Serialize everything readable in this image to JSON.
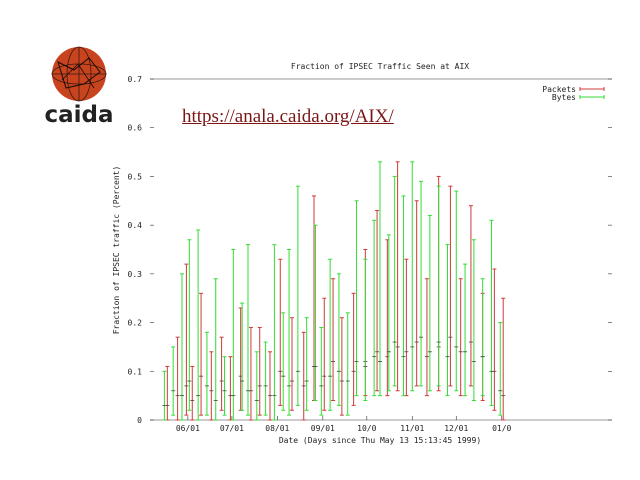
{
  "logo": {
    "text": "caida",
    "icon": "globe-icon"
  },
  "link": {
    "url": "https://anala.caida.org/AIX/"
  },
  "chart_data": {
    "type": "line",
    "title": "Fraction of IPSEC Traffic Seen at AIX",
    "xlabel": "Date (Days since Thu May 13 15:13:45 1999)",
    "ylabel": "Fraction of IPSEC traffic (Percent)",
    "ylim": [
      0,
      0.7
    ],
    "xlim": [
      0,
      300
    ],
    "yticks": [
      0,
      0.1,
      0.2,
      0.3,
      0.4,
      0.5,
      0.6,
      0.7
    ],
    "ytick_labels": [
      "0",
      "0.1",
      "0.2",
      "0.3",
      "0.4",
      "0.5",
      "0.6",
      "0.7"
    ],
    "xticks": [
      {
        "label": "06/01",
        "x": 19
      },
      {
        "label": "07/01",
        "x": 49
      },
      {
        "label": "08/01",
        "x": 80
      },
      {
        "label": "09/01",
        "x": 111
      },
      {
        "label": "10/0",
        "x": 141
      },
      {
        "label": "11/01",
        "x": 172
      },
      {
        "label": "12/01",
        "x": 202
      },
      {
        "label": "01/0",
        "x": 233
      }
    ],
    "grid": false,
    "legend_position": "top-right",
    "series": [
      {
        "name": "Packets",
        "color": "#d03a3a",
        "x": [
          5,
          12,
          18,
          22,
          28,
          35,
          42,
          48,
          55,
          62,
          68,
          75,
          82,
          90,
          98,
          105,
          112,
          118,
          124,
          132,
          140,
          148,
          155,
          162,
          168,
          175,
          182,
          190,
          198,
          205,
          212,
          220,
          228,
          234
        ],
        "value": [
          0.03,
          0.05,
          0.07,
          0.04,
          0.09,
          0.06,
          0.08,
          0.05,
          0.09,
          0.06,
          0.07,
          0.05,
          0.1,
          0.08,
          0.07,
          0.11,
          0.09,
          0.12,
          0.08,
          0.1,
          0.12,
          0.14,
          0.13,
          0.15,
          0.14,
          0.16,
          0.13,
          0.15,
          0.17,
          0.14,
          0.16,
          0.13,
          0.1,
          0.05
        ],
        "high": [
          0.11,
          0.17,
          0.32,
          0.11,
          0.26,
          0.14,
          0.17,
          0.13,
          0.23,
          0.19,
          0.19,
          0.14,
          0.33,
          0.21,
          0.18,
          0.46,
          0.25,
          0.29,
          0.21,
          0.26,
          0.35,
          0.43,
          0.37,
          0.53,
          0.33,
          0.45,
          0.29,
          0.5,
          0.48,
          0.29,
          0.44,
          0.26,
          0.31,
          0.25
        ],
        "low": [
          0.0,
          0.0,
          0.01,
          0.0,
          0.01,
          0.0,
          0.02,
          0.0,
          0.02,
          0.0,
          0.01,
          0.0,
          0.03,
          0.02,
          0.0,
          0.04,
          0.02,
          0.04,
          0.01,
          0.03,
          0.05,
          0.06,
          0.05,
          0.06,
          0.05,
          0.07,
          0.05,
          0.06,
          0.07,
          0.05,
          0.07,
          0.04,
          0.02,
          0.0
        ]
      },
      {
        "name": "Bytes",
        "color": "#33dd33",
        "x": [
          3,
          9,
          15,
          20,
          26,
          32,
          38,
          44,
          50,
          56,
          60,
          66,
          72,
          78,
          84,
          88,
          94,
          100,
          106,
          110,
          116,
          122,
          128,
          134,
          140,
          146,
          150,
          156,
          160,
          166,
          172,
          178,
          184,
          190,
          196,
          202,
          208,
          214,
          220,
          226,
          232
        ],
        "value": [
          0.03,
          0.06,
          0.05,
          0.08,
          0.05,
          0.07,
          0.04,
          0.06,
          0.05,
          0.08,
          0.06,
          0.04,
          0.07,
          0.05,
          0.09,
          0.07,
          0.1,
          0.08,
          0.11,
          0.07,
          0.09,
          0.1,
          0.08,
          0.12,
          0.11,
          0.13,
          0.12,
          0.14,
          0.16,
          0.13,
          0.15,
          0.17,
          0.14,
          0.16,
          0.13,
          0.15,
          0.14,
          0.12,
          0.13,
          0.1,
          0.06
        ],
        "high": [
          0.1,
          0.15,
          0.3,
          0.37,
          0.39,
          0.18,
          0.29,
          0.13,
          0.35,
          0.24,
          0.36,
          0.14,
          0.16,
          0.36,
          0.22,
          0.35,
          0.48,
          0.21,
          0.4,
          0.19,
          0.33,
          0.3,
          0.22,
          0.45,
          0.33,
          0.41,
          0.53,
          0.38,
          0.5,
          0.46,
          0.53,
          0.49,
          0.42,
          0.48,
          0.36,
          0.47,
          0.32,
          0.37,
          0.29,
          0.41,
          0.2
        ],
        "low": [
          0.0,
          0.01,
          0.0,
          0.02,
          0.0,
          0.01,
          0.0,
          0.01,
          0.0,
          0.02,
          0.01,
          0.0,
          0.01,
          0.0,
          0.02,
          0.01,
          0.03,
          0.02,
          0.04,
          0.01,
          0.02,
          0.03,
          0.01,
          0.05,
          0.04,
          0.05,
          0.05,
          0.06,
          0.07,
          0.05,
          0.06,
          0.07,
          0.06,
          0.07,
          0.05,
          0.06,
          0.05,
          0.04,
          0.05,
          0.03,
          0.01
        ]
      }
    ]
  }
}
